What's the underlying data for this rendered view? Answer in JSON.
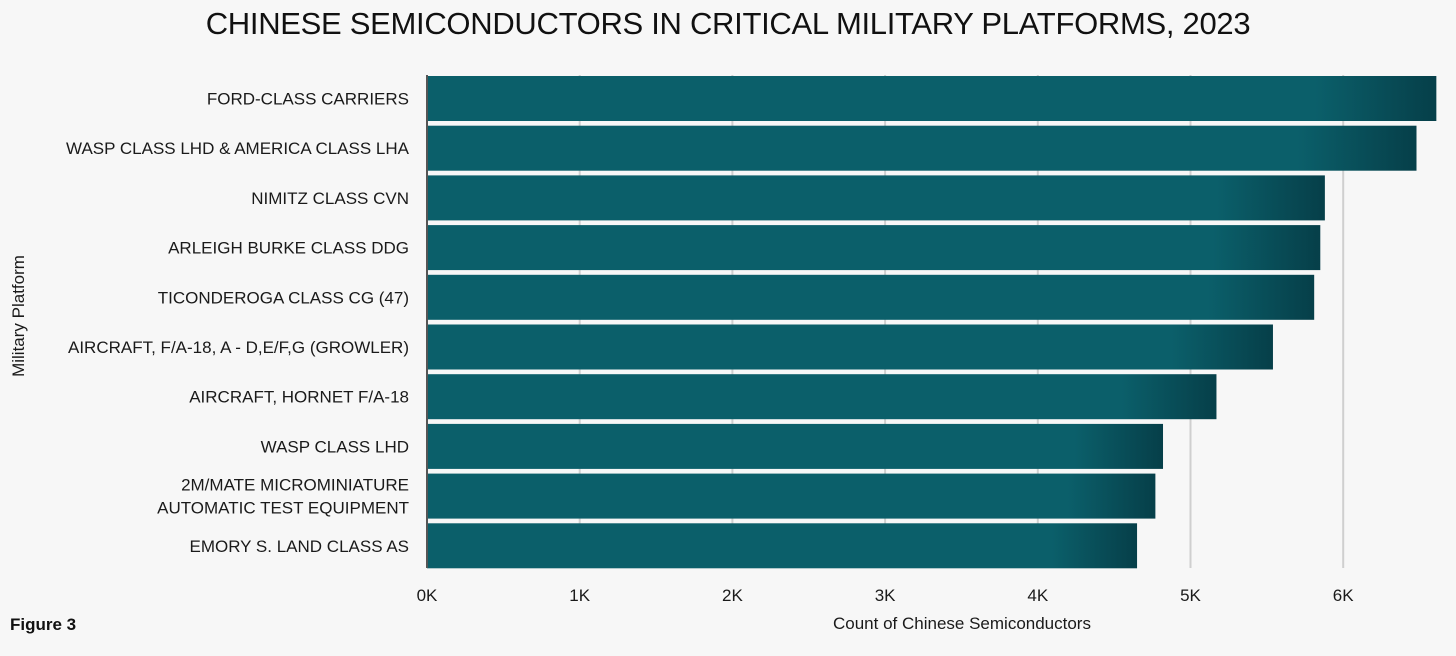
{
  "figure_label": "Figure 3",
  "chart_data": {
    "type": "bar",
    "orientation": "horizontal",
    "title": "CHINESE SEMICONDUCTORS IN CRITICAL MILITARY PLATFORMS, 2023",
    "xlabel": "Count of Chinese Semiconductors",
    "ylabel": "Military Platform",
    "xlim": [
      0,
      6700
    ],
    "x_ticks": [
      {
        "value": 0,
        "label": "0K"
      },
      {
        "value": 1000,
        "label": "1K"
      },
      {
        "value": 2000,
        "label": "2K"
      },
      {
        "value": 3000,
        "label": "3K"
      },
      {
        "value": 4000,
        "label": "4K"
      },
      {
        "value": 5000,
        "label": "5K"
      },
      {
        "value": 6000,
        "label": "6K"
      }
    ],
    "grid": true,
    "categories": [
      [
        "FORD-CLASS CARRIERS"
      ],
      [
        "WASP CLASS LHD & AMERICA CLASS LHA"
      ],
      [
        "NIMITZ CLASS CVN"
      ],
      [
        "ARLEIGH BURKE CLASS DDG"
      ],
      [
        "TICONDEROGA CLASS CG (47)"
      ],
      [
        "AIRCRAFT, F/A-18, A - D,E/F,G (GROWLER)"
      ],
      [
        "AIRCRAFT, HORNET F/A-18"
      ],
      [
        "WASP CLASS LHD"
      ],
      [
        "2M/MATE MICROMINIATURE",
        "AUTOMATIC TEST EQUIPMENT"
      ],
      [
        "EMORY S. LAND CLASS AS"
      ]
    ],
    "values": [
      6610,
      6480,
      5880,
      5850,
      5810,
      5540,
      5170,
      4820,
      4770,
      4650
    ],
    "bar_color": "#0b5f6a",
    "bar_color_dark": "#063f49"
  }
}
